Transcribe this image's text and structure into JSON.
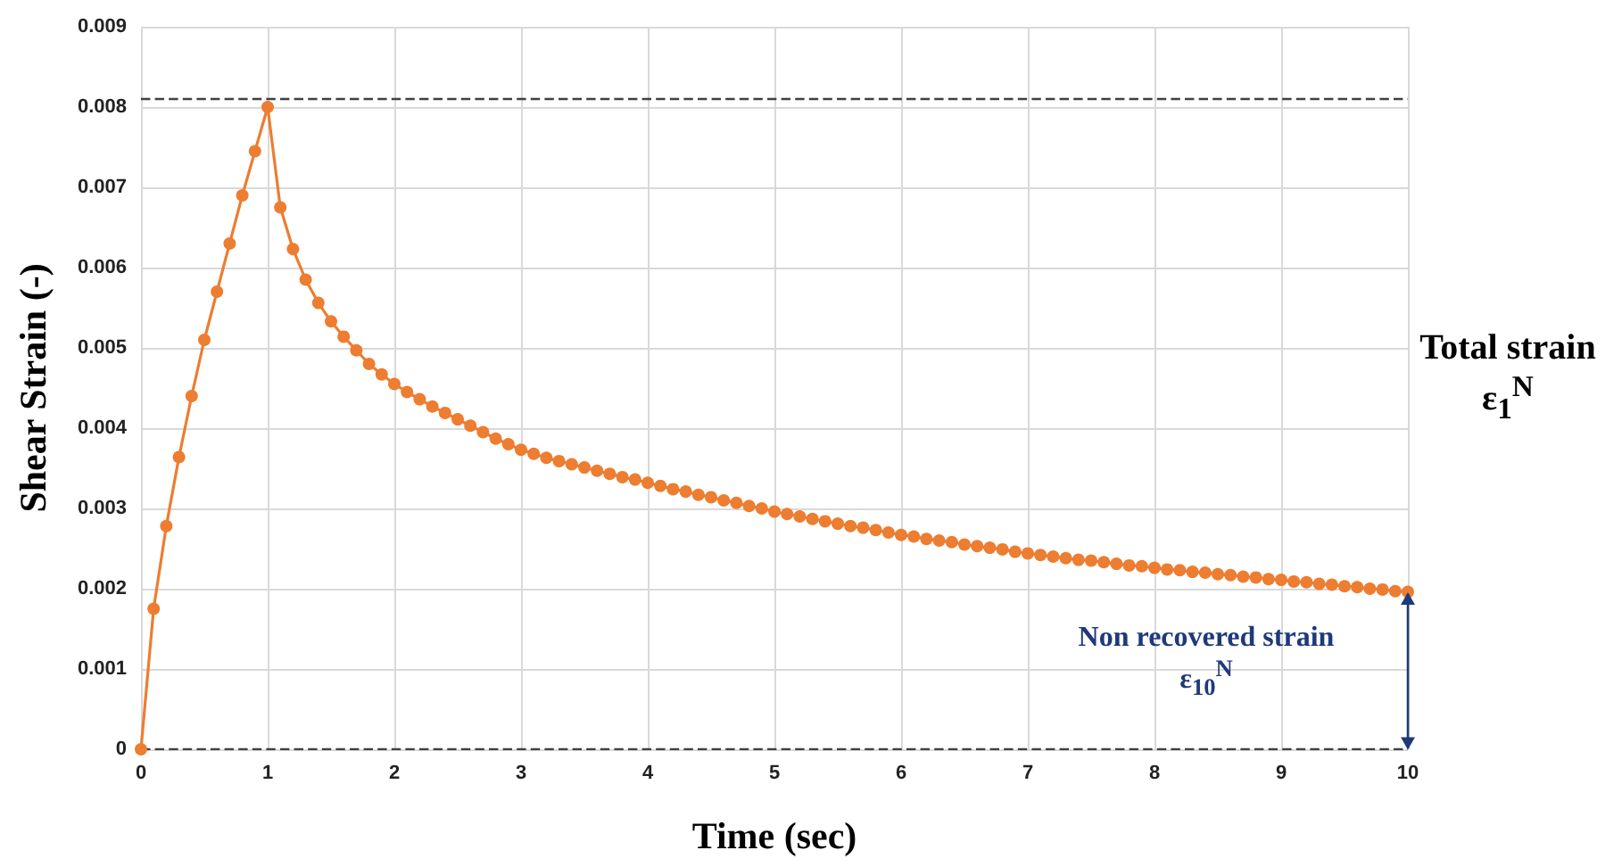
{
  "chart_data": {
    "type": "line",
    "xlabel": "Time (sec)",
    "ylabel": "Shear Strain (-)",
    "x": [
      0,
      0.1,
      0.2,
      0.3,
      0.4,
      0.5,
      0.6,
      0.7,
      0.8,
      0.9,
      1,
      1.1,
      1.2,
      1.3,
      1.4,
      1.5,
      1.6,
      1.7,
      1.8,
      1.9,
      2,
      2.1,
      2.2,
      2.3,
      2.4,
      2.5,
      2.6,
      2.7,
      2.8,
      2.9,
      3,
      3.1,
      3.2,
      3.3,
      3.4,
      3.5,
      3.6,
      3.7,
      3.8,
      3.9,
      4,
      4.1,
      4.2,
      4.3,
      4.4,
      4.5,
      4.6,
      4.7,
      4.8,
      4.9,
      5,
      5.1,
      5.2,
      5.3,
      5.4,
      5.5,
      5.6,
      5.7,
      5.8,
      5.9,
      6,
      6.1,
      6.2,
      6.3,
      6.4,
      6.5,
      6.6,
      6.7,
      6.8,
      6.9,
      7,
      7.1,
      7.2,
      7.3,
      7.4,
      7.5,
      7.6,
      7.7,
      7.8,
      7.9,
      8,
      8.1,
      8.2,
      8.3,
      8.4,
      8.5,
      8.6,
      8.7,
      8.8,
      8.9,
      9,
      9.1,
      9.2,
      9.3,
      9.4,
      9.5,
      9.6,
      9.7,
      9.8,
      9.9,
      10
    ],
    "series": [
      {
        "color": "#ed7d31",
        "values": [
          0,
          0.00175,
          0.00278,
          0.00364,
          0.0044,
          0.0051,
          0.0057,
          0.0063,
          0.0069,
          0.00745,
          0.008,
          0.00675,
          0.00623,
          0.00585,
          0.00556,
          0.00533,
          0.00514,
          0.00497,
          0.0048,
          0.00467,
          0.00455,
          0.00445,
          0.00436,
          0.00427,
          0.00419,
          0.00411,
          0.00403,
          0.00395,
          0.00387,
          0.0038,
          0.00373,
          0.00368,
          0.00363,
          0.00359,
          0.00355,
          0.00351,
          0.00347,
          0.00343,
          0.00339,
          0.00336,
          0.00332,
          0.00328,
          0.00324,
          0.00321,
          0.00317,
          0.00314,
          0.0031,
          0.00307,
          0.00303,
          0.003,
          0.00296,
          0.00293,
          0.0029,
          0.00287,
          0.00284,
          0.00281,
          0.00278,
          0.00276,
          0.00273,
          0.0027,
          0.00267,
          0.00265,
          0.00262,
          0.0026,
          0.00258,
          0.00255,
          0.00253,
          0.00251,
          0.00249,
          0.00246,
          0.00244,
          0.00242,
          0.0024,
          0.00238,
          0.00236,
          0.00235,
          0.00233,
          0.00231,
          0.00229,
          0.00228,
          0.00226,
          0.00224,
          0.00223,
          0.00221,
          0.0022,
          0.00218,
          0.00217,
          0.00215,
          0.00214,
          0.00212,
          0.00211,
          0.00209,
          0.00208,
          0.00206,
          0.00205,
          0.00203,
          0.00202,
          0.002,
          0.00199,
          0.00197,
          0.00196
        ]
      }
    ],
    "xlim": [
      0,
      10
    ],
    "xticks": [
      0,
      1,
      2,
      3,
      4,
      5,
      6,
      7,
      8,
      9,
      10
    ],
    "ylim": [
      0,
      0.009
    ],
    "yticks": [
      0,
      0.001,
      0.002,
      0.003,
      0.004,
      0.005,
      0.006,
      0.007,
      0.008,
      0.009
    ],
    "ref_lines": [
      {
        "axis": "y",
        "value": 0.0081,
        "color": "#404040",
        "line_style": "dashed"
      },
      {
        "axis": "y",
        "value": 0,
        "color": "#404040",
        "line_style": "dashed"
      }
    ],
    "annotations": [
      "Total strain\nε$_{1}$$^{N}$",
      {
        "text": "Non recovered strain\nε$_{10}$$^{N}$",
        "x": 10,
        "y": 0.00196
      }
    ],
    "grid": true,
    "marker": "circle",
    "line_style": "solid"
  }
}
